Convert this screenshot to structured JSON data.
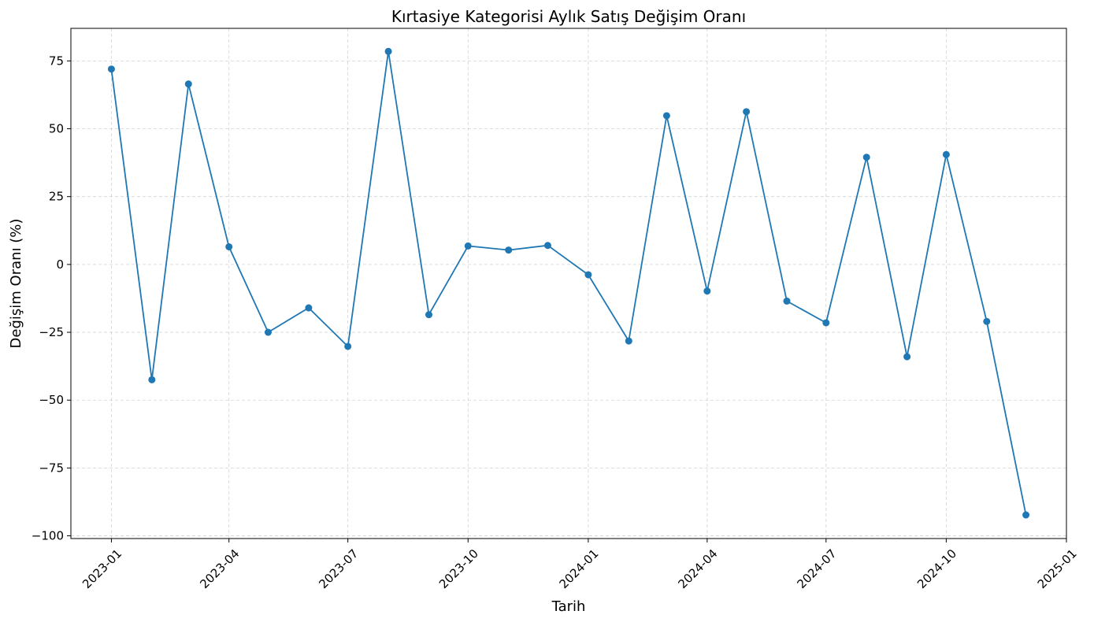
{
  "chart_data": {
    "type": "line",
    "title": "Kırtasiye Kategorisi Aylık Satış Değişim Oranı",
    "xlabel": "Tarih",
    "ylabel": "Değişim Oranı (%)",
    "ylim": [
      -101,
      87
    ],
    "xlim": [
      "2022-12-01",
      "2025-01-01"
    ],
    "grid": true,
    "x_ticks": [
      "2023-01",
      "2023-04",
      "2023-07",
      "2023-10",
      "2024-01",
      "2024-04",
      "2024-07",
      "2024-10",
      "2025-01"
    ],
    "y_ticks": [
      {
        "value": 75,
        "label": "75"
      },
      {
        "value": 50,
        "label": "50"
      },
      {
        "value": 25,
        "label": "25"
      },
      {
        "value": 0,
        "label": "0"
      },
      {
        "value": -25,
        "label": "−25"
      },
      {
        "value": -50,
        "label": "−50"
      },
      {
        "value": -75,
        "label": "−75"
      },
      {
        "value": -100,
        "label": "−100"
      }
    ],
    "color": "#1f77b4",
    "x": [
      "2023-01-01",
      "2023-02-01",
      "2023-03-01",
      "2023-04-01",
      "2023-05-01",
      "2023-06-01",
      "2023-07-01",
      "2023-08-01",
      "2023-09-01",
      "2023-10-01",
      "2023-11-01",
      "2023-12-01",
      "2024-01-01",
      "2024-02-01",
      "2024-03-01",
      "2024-04-01",
      "2024-05-01",
      "2024-06-01",
      "2024-07-01",
      "2024-08-01",
      "2024-09-01",
      "2024-10-01",
      "2024-11-01",
      "2024-12-01"
    ],
    "values": [
      72.0,
      -42.5,
      66.5,
      6.5,
      -25.0,
      -16.0,
      -30.2,
      78.5,
      -18.5,
      6.8,
      5.3,
      7.0,
      -3.8,
      -28.2,
      54.8,
      -9.8,
      56.3,
      -13.5,
      -21.5,
      39.5,
      -34.0,
      40.5,
      -21.0,
      -92.3
    ]
  }
}
